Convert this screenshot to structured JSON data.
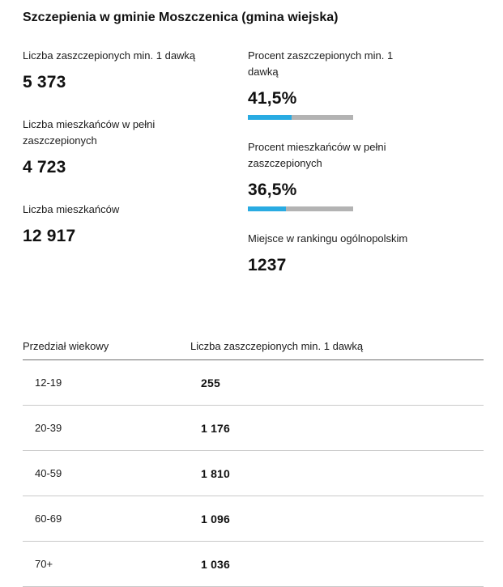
{
  "page": {
    "title": "Szczepienia w gminie Moszczenica (gmina wiejska)"
  },
  "stats": {
    "left": [
      {
        "label": "Liczba zaszczepionych min. 1 dawką",
        "value": "5 373"
      },
      {
        "label": "Liczba mieszkańców w pełni zaszczepionych",
        "value": "4 723"
      },
      {
        "label": "Liczba mieszkańców",
        "value": "12 917"
      }
    ],
    "right": [
      {
        "label": "Procent zaszczepionych min. 1 dawką",
        "value": "41,5%",
        "percent": 41.5
      },
      {
        "label": "Procent mieszkańców w pełni zaszczepionych",
        "value": "36,5%",
        "percent": 36.5
      },
      {
        "label": "Miejsce w rankingu ogólnopolskim",
        "value": "1237"
      }
    ]
  },
  "table": {
    "headers": {
      "age": "Przedział wiekowy",
      "count": "Liczba zaszczepionych min. 1 dawką"
    },
    "rows": [
      {
        "age": "12-19",
        "count": "255"
      },
      {
        "age": "20-39",
        "count": "1 176"
      },
      {
        "age": "40-59",
        "count": "1 810"
      },
      {
        "age": "60-69",
        "count": "1 096"
      },
      {
        "age": "70+",
        "count": "1 036"
      }
    ]
  },
  "colors": {
    "accent_blue": "#29abe2",
    "bar_track_gray": "#b3b3b3"
  }
}
